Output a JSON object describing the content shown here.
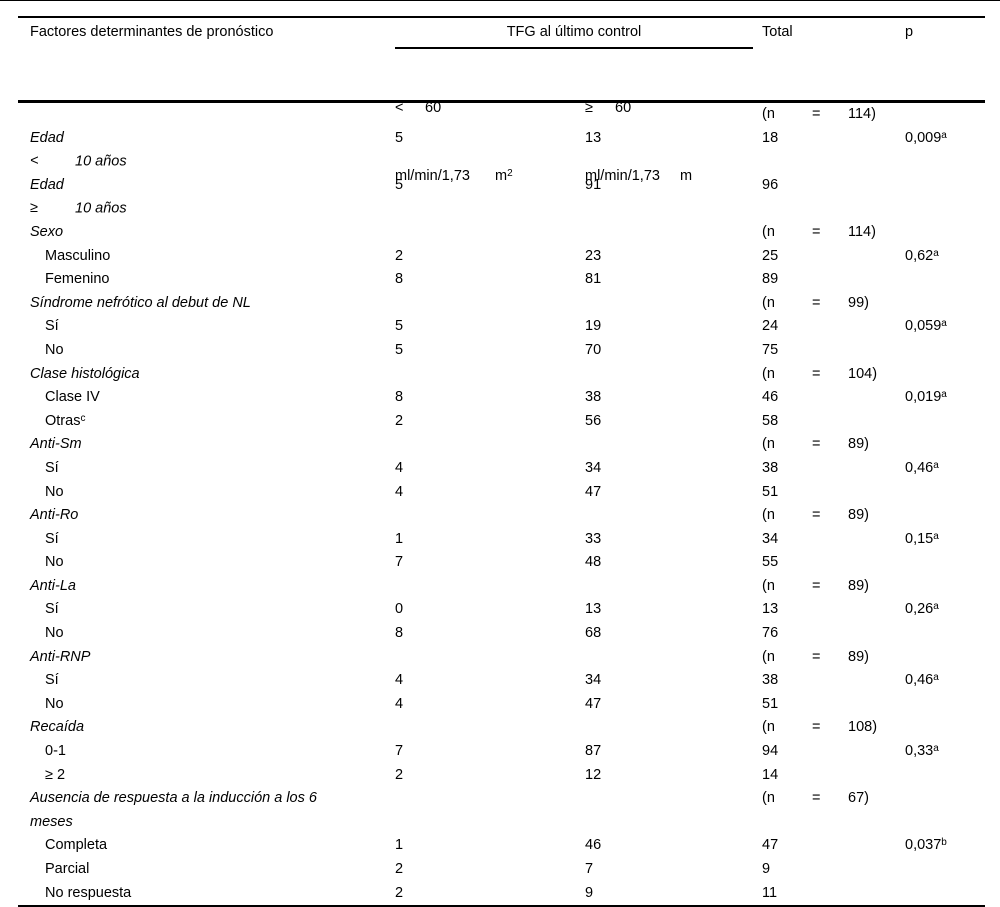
{
  "page": {
    "background": "#ffffff",
    "rule_color": "#000000",
    "text_color": "#000000"
  },
  "table": {
    "header": {
      "factor": "Factores determinantes de pronóstico",
      "tfg_group": "TFG al último control",
      "sub_lt60": {
        "sym": "<",
        "val": "60",
        "unit": "ml/min/1,73",
        "m": "m",
        "m_sup": "2"
      },
      "sub_ge60": {
        "sym": "≥",
        "val": "60",
        "unit": "ml/min/1,73",
        "m": "m"
      },
      "total": "Total",
      "p": "p"
    },
    "rows": [
      {
        "n": "(n = 114)"
      },
      {
        "label": "Edad <",
        "gap": "10 años",
        "italic": true,
        "v1": "5",
        "v2": "13",
        "total": "18",
        "p": "0,009",
        "psup": "a"
      },
      {
        "label": "Edad ≥",
        "gap": "10 años",
        "italic": true,
        "v1": "5",
        "v2": "91",
        "total": "96"
      },
      {
        "label": "Sexo",
        "italic": true,
        "n": "(n = 114)"
      },
      {
        "label": "Masculino",
        "indent": true,
        "v1": "2",
        "v2": "23",
        "total": "25",
        "p": "0,62",
        "psup": "a"
      },
      {
        "label": "Femenino",
        "indent": true,
        "v1": "8",
        "v2": "81",
        "total": "89"
      },
      {
        "label": "Síndrome nefrótico al debut de NL",
        "italic": true,
        "n": "(n = 99)"
      },
      {
        "label": "Sí",
        "indent": true,
        "v1": "5",
        "v2": "19",
        "total": "24",
        "p": "0,059",
        "psup": "a"
      },
      {
        "label": "No",
        "indent": true,
        "v1": "5",
        "v2": "70",
        "total": "75"
      },
      {
        "label": "Clase histológica",
        "italic": true,
        "n": "(n = 104)"
      },
      {
        "label": "Clase IV",
        "indent": true,
        "v1": "8",
        "v2": "38",
        "total": "46",
        "p": "0,019",
        "psup": "a"
      },
      {
        "label": "Otras",
        "sup": "c",
        "indent": true,
        "v1": "2",
        "v2": "56",
        "total": "58"
      },
      {
        "label": "Anti-Sm",
        "italic": true,
        "n": "(n = 89)"
      },
      {
        "label": "Sí",
        "indent": true,
        "v1": "4",
        "v2": "34",
        "total": "38",
        "p": "0,46",
        "psup": "a"
      },
      {
        "label": "No",
        "indent": true,
        "v1": "4",
        "v2": "47",
        "total": "51"
      },
      {
        "label": "Anti-Ro",
        "italic": true,
        "n": "(n = 89)"
      },
      {
        "label": "Sí",
        "indent": true,
        "v1": "1",
        "v2": "33",
        "total": "34",
        "p": "0,15",
        "psup": "a"
      },
      {
        "label": "No",
        "indent": true,
        "v1": "7",
        "v2": "48",
        "total": "55"
      },
      {
        "label": "Anti-La",
        "italic": true,
        "n": "(n = 89)"
      },
      {
        "label": "Sí",
        "indent": true,
        "v1": "0",
        "v2": "13",
        "total": "13",
        "p": "0,26",
        "psup": "a"
      },
      {
        "label": "No",
        "indent": true,
        "v1": "8",
        "v2": "68",
        "total": "76"
      },
      {
        "label": "Anti-RNP",
        "italic": true,
        "n": "(n = 89)"
      },
      {
        "label": "Sí",
        "indent": true,
        "v1": "4",
        "v2": "34",
        "total": "38",
        "p": "0,46",
        "psup": "a"
      },
      {
        "label": "No",
        "indent": true,
        "v1": "4",
        "v2": "47",
        "total": "51"
      },
      {
        "label": "Recaída",
        "italic": true,
        "n": "(n = 108)"
      },
      {
        "label": "0-1",
        "indent": true,
        "v1": "7",
        "v2": "87",
        "total": "94",
        "p": "0,33",
        "psup": "a"
      },
      {
        "label": "≥ 2",
        "indent": true,
        "v1": "2",
        "v2": "12",
        "total": "14"
      },
      {
        "label": "Ausencia de respuesta a la inducción a los 6",
        "line2": "meses",
        "italic": true,
        "n": "(n = 67)"
      },
      {
        "label": "Completa",
        "indent": true,
        "v1": "1",
        "v2": "46",
        "total": "47",
        "p": "0,037",
        "psup": "b"
      },
      {
        "label": "Parcial",
        "indent": true,
        "v1": "2",
        "v2": "7",
        "total": "9"
      },
      {
        "label": "No respuesta",
        "indent": true,
        "v1": "2",
        "v2": "9",
        "total": "11"
      }
    ]
  }
}
